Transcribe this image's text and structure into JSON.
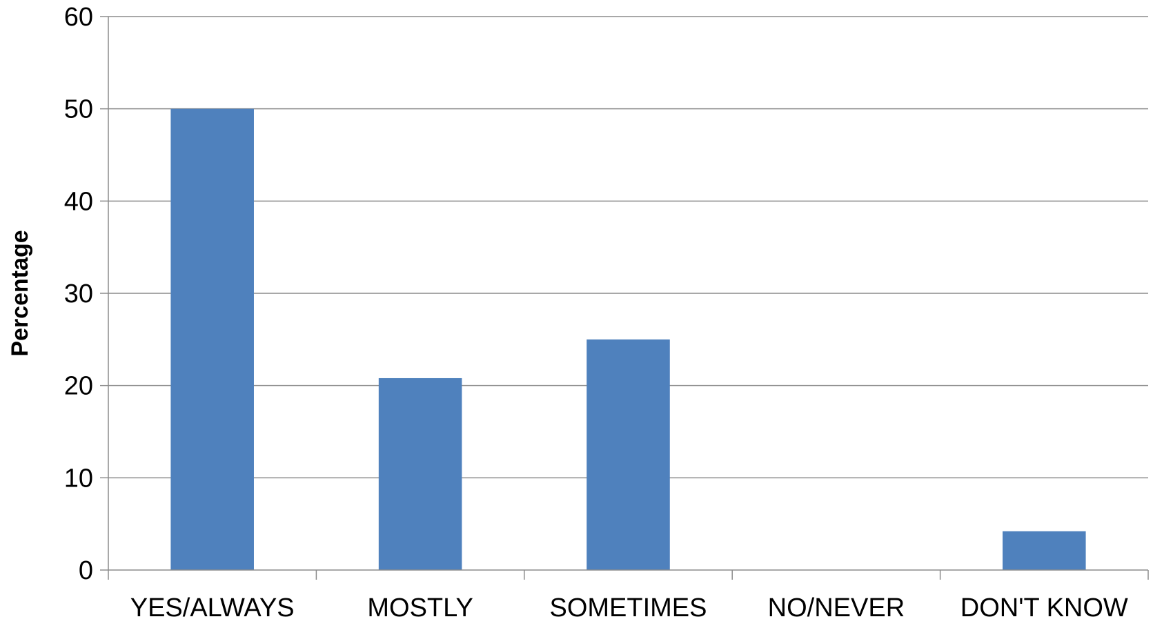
{
  "chart_data": {
    "type": "bar",
    "title": "",
    "xlabel": "",
    "ylabel": "Percentage",
    "categories": [
      "YES/ALWAYS",
      "MOSTLY",
      "SOMETIMES",
      "NO/NEVER",
      "DON'T KNOW"
    ],
    "values": [
      50,
      20.8,
      25,
      0,
      4.2
    ],
    "ylim": [
      0,
      60
    ],
    "yticks": [
      "0",
      "10",
      "20",
      "30",
      "40",
      "50",
      "60"
    ],
    "grid": true,
    "legend": "none",
    "bar_color": "#4f81bd"
  }
}
